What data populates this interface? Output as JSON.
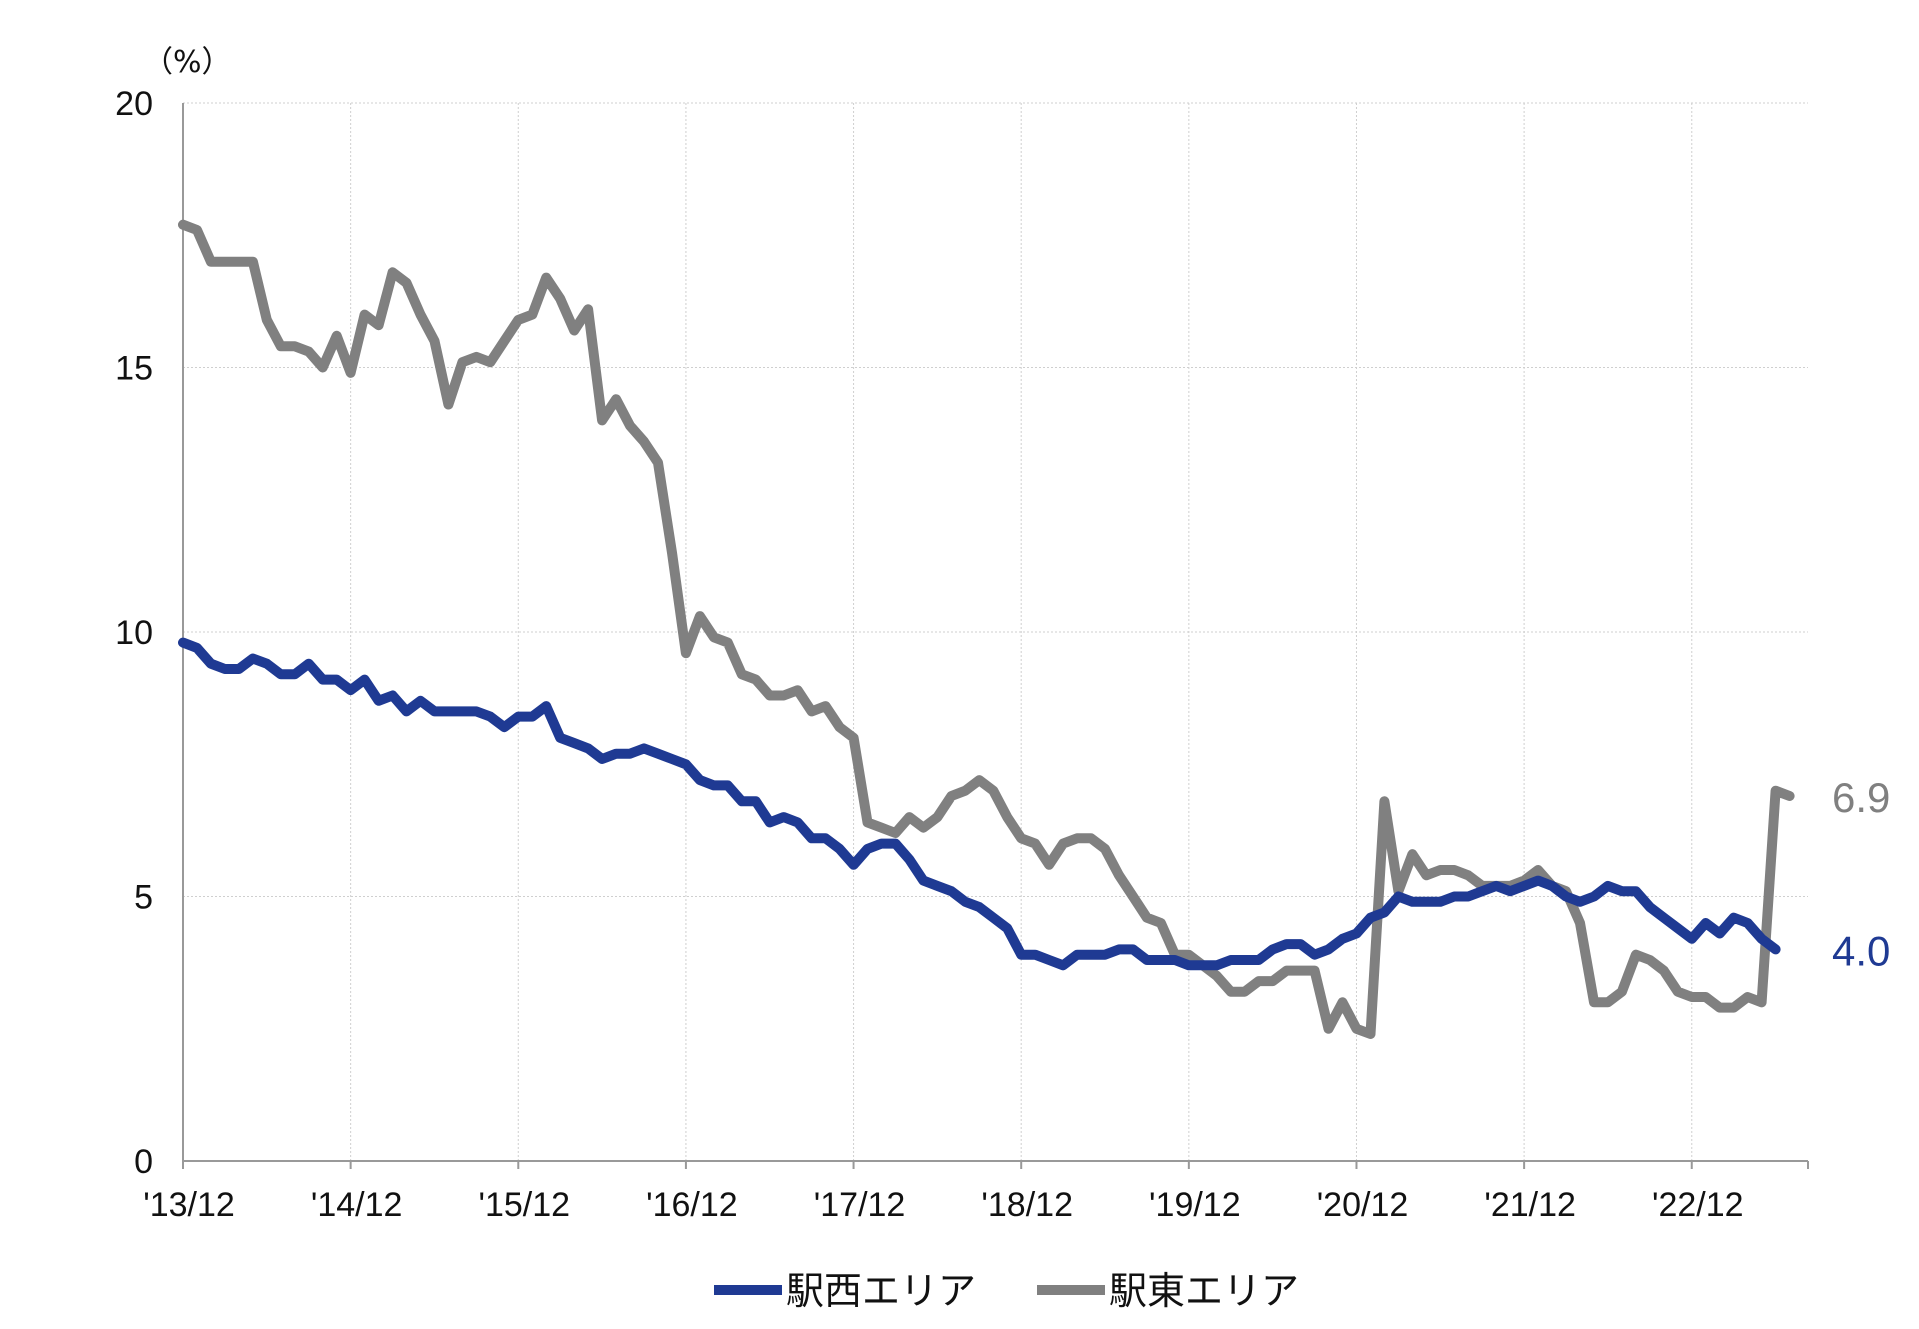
{
  "chart_data": {
    "type": "line",
    "title": "",
    "unit_label": "（%）",
    "xlabel": "",
    "ylabel": "",
    "ylim": [
      0,
      20
    ],
    "yticks": [
      "0",
      "5",
      "10",
      "15",
      "20"
    ],
    "xlim": [
      0,
      116
    ],
    "xticks": [
      {
        "x": 0,
        "label": "'13/12"
      },
      {
        "x": 12,
        "label": "'14/12"
      },
      {
        "x": 24,
        "label": "'15/12"
      },
      {
        "x": 36,
        "label": "'16/12"
      },
      {
        "x": 48,
        "label": "'17/12"
      },
      {
        "x": 60,
        "label": "'18/12"
      },
      {
        "x": 72,
        "label": "'19/12"
      },
      {
        "x": 84,
        "label": "'20/12"
      },
      {
        "x": 96,
        "label": "'21/12"
      },
      {
        "x": 108,
        "label": "'22/12"
      }
    ],
    "grid": true,
    "legend_position": "bottom",
    "series": [
      {
        "name": "駅西エリア",
        "color": "#1f3a93",
        "end_label": "4.0",
        "points": [
          [
            0,
            9.8
          ],
          [
            1,
            9.7
          ],
          [
            2,
            9.4
          ],
          [
            3,
            9.3
          ],
          [
            4,
            9.3
          ],
          [
            5,
            9.5
          ],
          [
            6,
            9.4
          ],
          [
            7,
            9.2
          ],
          [
            8,
            9.2
          ],
          [
            9,
            9.4
          ],
          [
            10,
            9.1
          ],
          [
            11,
            9.1
          ],
          [
            12,
            8.9
          ],
          [
            13,
            9.1
          ],
          [
            14,
            8.7
          ],
          [
            15,
            8.8
          ],
          [
            16,
            8.5
          ],
          [
            17,
            8.7
          ],
          [
            18,
            8.5
          ],
          [
            19,
            8.5
          ],
          [
            20,
            8.5
          ],
          [
            21,
            8.5
          ],
          [
            22,
            8.4
          ],
          [
            23,
            8.2
          ],
          [
            24,
            8.4
          ],
          [
            25,
            8.4
          ],
          [
            26,
            8.6
          ],
          [
            27,
            8.0
          ],
          [
            28,
            7.9
          ],
          [
            29,
            7.8
          ],
          [
            30,
            7.6
          ],
          [
            31,
            7.7
          ],
          [
            32,
            7.7
          ],
          [
            33,
            7.8
          ],
          [
            34,
            7.7
          ],
          [
            35,
            7.6
          ],
          [
            36,
            7.5
          ],
          [
            37,
            7.2
          ],
          [
            38,
            7.1
          ],
          [
            39,
            7.1
          ],
          [
            40,
            6.8
          ],
          [
            41,
            6.8
          ],
          [
            42,
            6.4
          ],
          [
            43,
            6.5
          ],
          [
            44,
            6.4
          ],
          [
            45,
            6.1
          ],
          [
            46,
            6.1
          ],
          [
            47,
            5.9
          ],
          [
            48,
            5.6
          ],
          [
            49,
            5.9
          ],
          [
            50,
            6.0
          ],
          [
            51,
            6.0
          ],
          [
            52,
            5.7
          ],
          [
            53,
            5.3
          ],
          [
            54,
            5.2
          ],
          [
            55,
            5.1
          ],
          [
            56,
            4.9
          ],
          [
            57,
            4.8
          ],
          [
            58,
            4.6
          ],
          [
            59,
            4.4
          ],
          [
            60,
            3.9
          ],
          [
            61,
            3.9
          ],
          [
            62,
            3.8
          ],
          [
            63,
            3.7
          ],
          [
            64,
            3.9
          ],
          [
            65,
            3.9
          ],
          [
            66,
            3.9
          ],
          [
            67,
            4.0
          ],
          [
            68,
            4.0
          ],
          [
            69,
            3.8
          ],
          [
            70,
            3.8
          ],
          [
            71,
            3.8
          ],
          [
            72,
            3.7
          ],
          [
            73,
            3.7
          ],
          [
            74,
            3.7
          ],
          [
            75,
            3.8
          ],
          [
            76,
            3.8
          ],
          [
            77,
            3.8
          ],
          [
            78,
            4.0
          ],
          [
            79,
            4.1
          ],
          [
            80,
            4.1
          ],
          [
            81,
            3.9
          ],
          [
            82,
            4.0
          ],
          [
            83,
            4.2
          ],
          [
            84,
            4.3
          ],
          [
            85,
            4.6
          ],
          [
            86,
            4.7
          ],
          [
            87,
            5.0
          ],
          [
            88,
            4.9
          ],
          [
            89,
            4.9
          ],
          [
            90,
            4.9
          ],
          [
            91,
            5.0
          ],
          [
            92,
            5.0
          ],
          [
            93,
            5.1
          ],
          [
            94,
            5.2
          ],
          [
            95,
            5.1
          ],
          [
            96,
            5.2
          ],
          [
            97,
            5.3
          ],
          [
            98,
            5.2
          ],
          [
            99,
            5.0
          ],
          [
            100,
            4.9
          ],
          [
            101,
            5.0
          ],
          [
            102,
            5.2
          ],
          [
            103,
            5.1
          ],
          [
            104,
            5.1
          ],
          [
            105,
            4.8
          ],
          [
            106,
            4.6
          ],
          [
            107,
            4.4
          ],
          [
            108,
            4.2
          ],
          [
            109,
            4.5
          ],
          [
            110,
            4.3
          ],
          [
            111,
            4.6
          ],
          [
            112,
            4.5
          ],
          [
            113,
            4.2
          ],
          [
            114,
            4.0
          ]
        ]
      },
      {
        "name": "駅東エリア",
        "color": "#808080",
        "end_label": "6.9",
        "points": [
          [
            0,
            17.7
          ],
          [
            1,
            17.6
          ],
          [
            2,
            17.0
          ],
          [
            3,
            17.0
          ],
          [
            4,
            17.0
          ],
          [
            5,
            17.0
          ],
          [
            6,
            15.9
          ],
          [
            7,
            15.4
          ],
          [
            8,
            15.4
          ],
          [
            9,
            15.3
          ],
          [
            10,
            15.0
          ],
          [
            11,
            15.6
          ],
          [
            12,
            14.9
          ],
          [
            13,
            16.0
          ],
          [
            14,
            15.8
          ],
          [
            15,
            16.8
          ],
          [
            16,
            16.6
          ],
          [
            17,
            16.0
          ],
          [
            18,
            15.5
          ],
          [
            19,
            14.3
          ],
          [
            20,
            15.1
          ],
          [
            21,
            15.2
          ],
          [
            22,
            15.1
          ],
          [
            23,
            15.5
          ],
          [
            24,
            15.9
          ],
          [
            25,
            16.0
          ],
          [
            26,
            16.7
          ],
          [
            27,
            16.3
          ],
          [
            28,
            15.7
          ],
          [
            29,
            16.1
          ],
          [
            30,
            14.0
          ],
          [
            31,
            14.4
          ],
          [
            32,
            13.9
          ],
          [
            33,
            13.6
          ],
          [
            34,
            13.2
          ],
          [
            35,
            11.5
          ],
          [
            36,
            9.6
          ],
          [
            37,
            10.3
          ],
          [
            38,
            9.9
          ],
          [
            39,
            9.8
          ],
          [
            40,
            9.2
          ],
          [
            41,
            9.1
          ],
          [
            42,
            8.8
          ],
          [
            43,
            8.8
          ],
          [
            44,
            8.9
          ],
          [
            45,
            8.5
          ],
          [
            46,
            8.6
          ],
          [
            47,
            8.2
          ],
          [
            48,
            8.0
          ],
          [
            49,
            6.4
          ],
          [
            50,
            6.3
          ],
          [
            51,
            6.2
          ],
          [
            52,
            6.5
          ],
          [
            53,
            6.3
          ],
          [
            54,
            6.5
          ],
          [
            55,
            6.9
          ],
          [
            56,
            7.0
          ],
          [
            57,
            7.2
          ],
          [
            58,
            7.0
          ],
          [
            59,
            6.5
          ],
          [
            60,
            6.1
          ],
          [
            61,
            6.0
          ],
          [
            62,
            5.6
          ],
          [
            63,
            6.0
          ],
          [
            64,
            6.1
          ],
          [
            65,
            6.1
          ],
          [
            66,
            5.9
          ],
          [
            67,
            5.4
          ],
          [
            68,
            5.0
          ],
          [
            69,
            4.6
          ],
          [
            70,
            4.5
          ],
          [
            71,
            3.9
          ],
          [
            72,
            3.9
          ],
          [
            73,
            3.7
          ],
          [
            74,
            3.5
          ],
          [
            75,
            3.2
          ],
          [
            76,
            3.2
          ],
          [
            77,
            3.4
          ],
          [
            78,
            3.4
          ],
          [
            79,
            3.6
          ],
          [
            80,
            3.6
          ],
          [
            81,
            3.6
          ],
          [
            82,
            2.5
          ],
          [
            83,
            3.0
          ],
          [
            84,
            2.5
          ],
          [
            85,
            2.4
          ],
          [
            86,
            6.8
          ],
          [
            87,
            5.1
          ],
          [
            88,
            5.8
          ],
          [
            89,
            5.4
          ],
          [
            90,
            5.5
          ],
          [
            91,
            5.5
          ],
          [
            92,
            5.4
          ],
          [
            93,
            5.2
          ],
          [
            94,
            5.2
          ],
          [
            95,
            5.2
          ],
          [
            96,
            5.3
          ],
          [
            97,
            5.5
          ],
          [
            98,
            5.2
          ],
          [
            99,
            5.1
          ],
          [
            100,
            4.5
          ],
          [
            101,
            3.0
          ],
          [
            102,
            3.0
          ],
          [
            103,
            3.2
          ],
          [
            104,
            3.9
          ],
          [
            105,
            3.8
          ],
          [
            106,
            3.6
          ],
          [
            107,
            3.2
          ],
          [
            108,
            3.1
          ],
          [
            109,
            3.1
          ],
          [
            110,
            2.9
          ],
          [
            111,
            2.9
          ],
          [
            112,
            3.1
          ],
          [
            113,
            3.0
          ],
          [
            114,
            7.0
          ],
          [
            115,
            6.9
          ]
        ]
      }
    ]
  }
}
